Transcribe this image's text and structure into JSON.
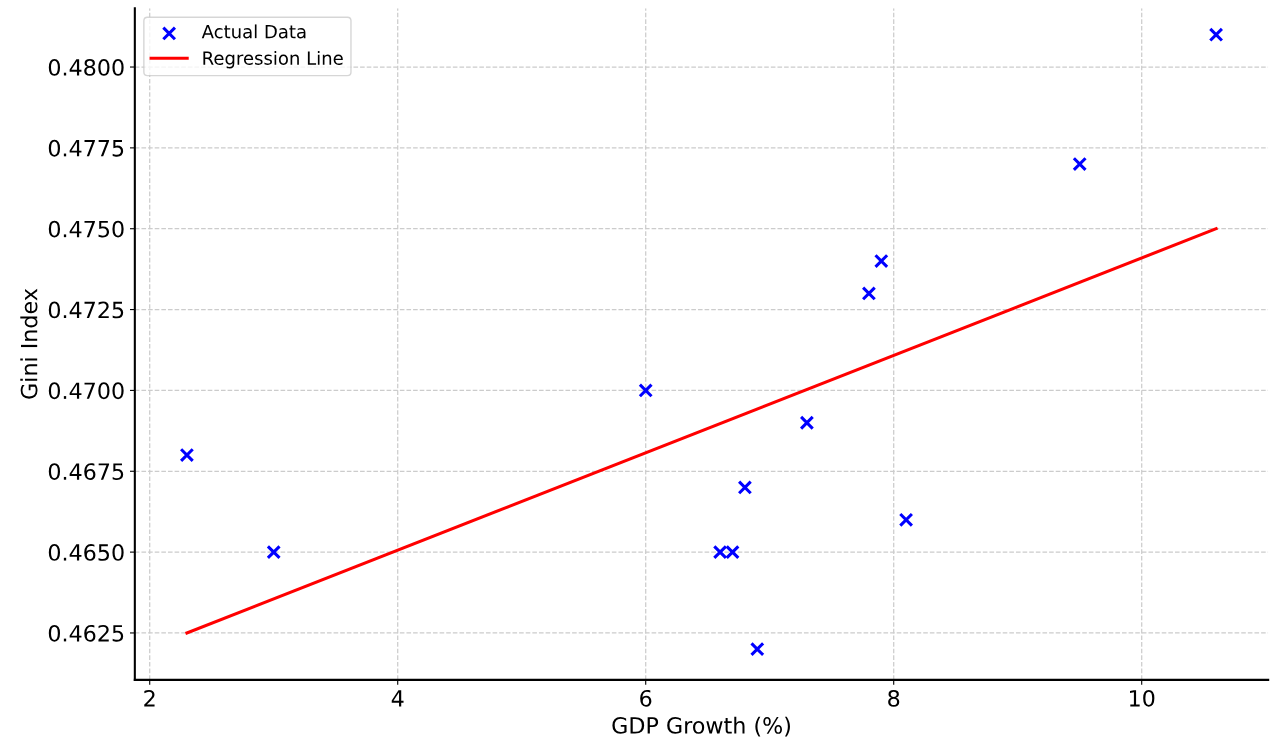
{
  "chart_data": {
    "type": "scatter",
    "xlabel": "GDP Growth (%)",
    "ylabel": "Gini Index",
    "series": [
      {
        "name": "Actual Data",
        "type": "scatter",
        "color": "#0000ff",
        "marker": "cross",
        "x": [
          2.3,
          3.0,
          6.0,
          6.6,
          6.7,
          6.8,
          6.9,
          7.3,
          7.8,
          7.9,
          8.1,
          9.5,
          10.6
        ],
        "values": [
          0.468,
          0.465,
          0.47,
          0.465,
          0.465,
          0.467,
          0.462,
          0.469,
          0.473,
          0.474,
          0.466,
          0.477,
          0.481
        ]
      },
      {
        "name": "Regression Line",
        "type": "line",
        "color": "#ff0000",
        "marker": "none",
        "line_style": "solid",
        "x": [
          2.3,
          10.6
        ],
        "values": [
          0.4625,
          0.475
        ]
      }
    ],
    "xlim": [
      1.88,
      11.02
    ],
    "ylim": [
      0.46105,
      0.48182
    ],
    "xticks": [
      2,
      4,
      6,
      8,
      10
    ],
    "yticks": [
      {
        "value": 0.4625,
        "label": "0.4625"
      },
      {
        "value": 0.465,
        "label": "0.4650"
      },
      {
        "value": 0.4675,
        "label": "0.4675"
      },
      {
        "value": 0.47,
        "label": "0.4700"
      },
      {
        "value": 0.4725,
        "label": "0.4725"
      },
      {
        "value": 0.475,
        "label": "0.4750"
      },
      {
        "value": 0.4775,
        "label": "0.4775"
      },
      {
        "value": 0.48,
        "label": "0.4800"
      }
    ],
    "grid": true,
    "legend": "top left"
  }
}
